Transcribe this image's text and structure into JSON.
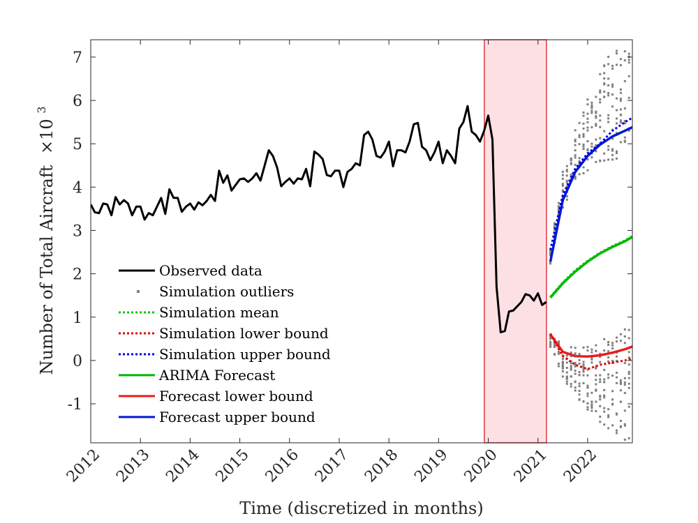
{
  "chart_data": {
    "type": "line",
    "title": "",
    "xlabel": "Time (discretized in months)",
    "ylabel": "Number of Total Aircraft",
    "ylabel_factor": "×10",
    "ylabel_exponent": "3",
    "xlim": [
      2012.0,
      2022.9
    ],
    "ylim": [
      -1.9,
      7.4
    ],
    "x_ticks": [
      2012,
      2013,
      2014,
      2015,
      2016,
      2017,
      2018,
      2019,
      2020,
      2021,
      2022
    ],
    "x_tick_labels": [
      "2012",
      "2013",
      "2014",
      "2015",
      "2016",
      "2017",
      "2018",
      "2019",
      "2020",
      "2021",
      "2022"
    ],
    "y_ticks": [
      -1,
      0,
      1,
      2,
      3,
      4,
      5,
      6,
      7
    ],
    "y_tick_labels": [
      "-1",
      "0",
      "1",
      "2",
      "3",
      "4",
      "5",
      "6",
      "7"
    ],
    "grid": false,
    "legend_position": "lower-left",
    "shaded_region": {
      "x_start": 2019.92,
      "x_end": 2021.17,
      "fill": "#fce0e4",
      "stroke": "#e0383e"
    },
    "colors": {
      "observed": "#000000",
      "outliers": "#808080",
      "arima": "#00b400",
      "lower": "#ea1c1c",
      "upper": "#0018d8",
      "sim_mean": "#00c800",
      "sim_lower": "#e00000",
      "sim_upper": "#0000e0"
    },
    "legend": [
      {
        "key": "observed",
        "label": "Observed data",
        "style": "solid"
      },
      {
        "key": "outliers",
        "label": "Simulation outliers",
        "style": "dot"
      },
      {
        "key": "sim_mean",
        "label": "Simulation mean",
        "style": "dotted"
      },
      {
        "key": "sim_lower",
        "label": "Simulation lower bound",
        "style": "dotted"
      },
      {
        "key": "sim_upper",
        "label": "Simulation upper bound",
        "style": "dotted"
      },
      {
        "key": "arima",
        "label": "ARIMA Forecast",
        "style": "solid"
      },
      {
        "key": "lower",
        "label": "Forecast lower bound",
        "style": "solid"
      },
      {
        "key": "upper",
        "label": "Forecast upper bound",
        "style": "solid"
      }
    ],
    "observed": {
      "name": "Observed data",
      "x_start": 2012.0,
      "x_step_months": 1,
      "values": [
        3.6,
        3.42,
        3.4,
        3.62,
        3.6,
        3.35,
        3.77,
        3.6,
        3.7,
        3.62,
        3.35,
        3.55,
        3.55,
        3.25,
        3.4,
        3.35,
        3.55,
        3.75,
        3.38,
        3.95,
        3.75,
        3.75,
        3.43,
        3.55,
        3.62,
        3.48,
        3.65,
        3.58,
        3.68,
        3.82,
        3.68,
        4.38,
        4.1,
        4.27,
        3.92,
        4.05,
        4.18,
        4.2,
        4.12,
        4.2,
        4.32,
        4.15,
        4.5,
        4.85,
        4.72,
        4.45,
        4.02,
        4.12,
        4.2,
        4.08,
        4.2,
        4.18,
        4.42,
        4.02,
        4.82,
        4.75,
        4.65,
        4.28,
        4.25,
        4.38,
        4.38,
        4.0,
        4.35,
        4.42,
        4.55,
        4.5,
        5.2,
        5.28,
        5.1,
        4.72,
        4.68,
        4.82,
        5.05,
        4.48,
        4.85,
        4.85,
        4.8,
        5.05,
        5.45,
        5.48,
        4.93,
        4.85,
        4.62,
        4.8,
        5.05,
        4.55,
        4.85,
        4.72,
        4.55,
        5.35,
        5.5,
        5.87,
        5.28,
        5.2,
        5.05,
        5.3,
        5.65,
        5.1,
        1.7,
        0.65,
        0.68,
        1.13,
        1.15,
        1.25,
        1.35,
        1.53,
        1.5,
        1.38,
        1.55,
        1.28,
        1.35
      ]
    },
    "forecast": {
      "x": [
        2021.25,
        2021.5,
        2021.75,
        2022.0,
        2022.25,
        2022.5,
        2022.75,
        2022.9
      ],
      "arima": [
        1.45,
        1.78,
        2.05,
        2.28,
        2.47,
        2.62,
        2.75,
        2.85
      ],
      "upper": [
        2.28,
        3.7,
        4.35,
        4.72,
        4.98,
        5.17,
        5.3,
        5.38
      ],
      "lower": [
        0.6,
        0.2,
        0.1,
        0.09,
        0.12,
        0.18,
        0.26,
        0.32
      ],
      "sim_mean": [
        1.47,
        1.8,
        2.08,
        2.3,
        2.49,
        2.64,
        2.77,
        2.87
      ],
      "sim_upper": [
        2.55,
        3.82,
        4.42,
        4.78,
        5.0,
        5.3,
        5.5,
        5.6
      ],
      "sim_lower": [
        0.62,
        0.1,
        -0.1,
        -0.2,
        -0.1,
        -0.05,
        0.0,
        0.05
      ]
    }
  }
}
